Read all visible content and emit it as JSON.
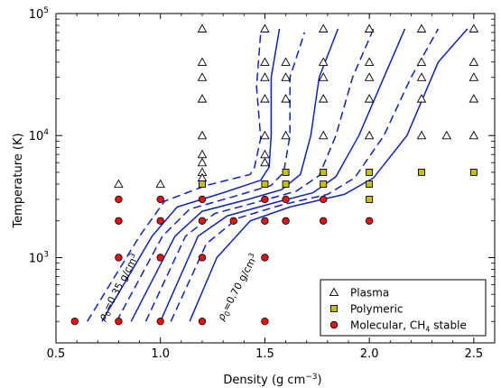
{
  "chart_data": {
    "type": "scatter",
    "xlabel": "Density (g cm",
    "xlabel_sup": "−3",
    "xlabel_end": ")",
    "ylabel": "Temperature (K)",
    "xlim": [
      0.5,
      2.6
    ],
    "ylim": [
      200,
      100000
    ],
    "yscale": "log",
    "x_ticks": [
      {
        "v": 0.5,
        "label": "0.5"
      },
      {
        "v": 1.0,
        "label": "1.0"
      },
      {
        "v": 1.5,
        "label": "1.5"
      },
      {
        "v": 2.0,
        "label": "2.0"
      },
      {
        "v": 2.5,
        "label": "2.5"
      }
    ],
    "y_ticks": [
      {
        "v": 1000,
        "base": "10",
        "exp": "3"
      },
      {
        "v": 10000,
        "base": "10",
        "exp": "4"
      },
      {
        "v": 100000,
        "base": "10",
        "exp": "5"
      }
    ],
    "legend_position": "lower-right",
    "legend": [
      {
        "label": "Plasma",
        "marker": "triangle"
      },
      {
        "label": "Polymeric",
        "marker": "square"
      },
      {
        "label": "Molecular, CH",
        "sub": "4",
        "label_end": " stable",
        "marker": "circle"
      }
    ],
    "annotations": [
      {
        "text": "ρ",
        "sub": "0",
        "text_end": "=0.35 g/cm",
        "sup": "3",
        "x": 0.73,
        "y": 300,
        "angle": -62
      },
      {
        "text": "ρ",
        "sub": "0",
        "text_end": "=0.70 g/cm",
        "sup": "3",
        "x": 1.3,
        "y": 300,
        "angle": -62
      }
    ],
    "colors": {
      "isentrope": "#0d1fd6",
      "plasma": "#ffffff",
      "polymeric": "#c8c000",
      "molecular": "#e81010"
    },
    "points": {
      "plasma": [
        [
          0.8,
          4000
        ],
        [
          1.0,
          4000
        ],
        [
          1.2,
          75000
        ],
        [
          1.2,
          40000
        ],
        [
          1.2,
          30000
        ],
        [
          1.2,
          20000
        ],
        [
          1.2,
          10000
        ],
        [
          1.2,
          7000
        ],
        [
          1.2,
          6000
        ],
        [
          1.2,
          5000
        ],
        [
          1.2,
          4500
        ],
        [
          1.5,
          75000
        ],
        [
          1.5,
          40000
        ],
        [
          1.5,
          30000
        ],
        [
          1.5,
          20000
        ],
        [
          1.5,
          10000
        ],
        [
          1.5,
          7000
        ],
        [
          1.5,
          6000
        ],
        [
          1.6,
          40000
        ],
        [
          1.6,
          30000
        ],
        [
          1.6,
          20000
        ],
        [
          1.6,
          10000
        ],
        [
          1.78,
          75000
        ],
        [
          1.78,
          40000
        ],
        [
          1.78,
          30000
        ],
        [
          1.78,
          20000
        ],
        [
          1.78,
          10000
        ],
        [
          2.0,
          75000
        ],
        [
          2.0,
          40000
        ],
        [
          2.0,
          30000
        ],
        [
          2.0,
          20000
        ],
        [
          2.0,
          10000
        ],
        [
          2.25,
          75000
        ],
        [
          2.25,
          40000
        ],
        [
          2.25,
          30000
        ],
        [
          2.25,
          20000
        ],
        [
          2.25,
          10000
        ],
        [
          2.37,
          10000
        ],
        [
          2.5,
          75000
        ],
        [
          2.5,
          40000
        ],
        [
          2.5,
          30000
        ],
        [
          2.5,
          20000
        ],
        [
          2.5,
          10000
        ]
      ],
      "polymeric": [
        [
          1.2,
          4000
        ],
        [
          1.5,
          4000
        ],
        [
          1.6,
          4000
        ],
        [
          1.78,
          4000
        ],
        [
          2.0,
          4000
        ],
        [
          2.0,
          3000
        ],
        [
          1.6,
          5000
        ],
        [
          1.78,
          5000
        ],
        [
          2.0,
          5000
        ],
        [
          2.25,
          5000
        ],
        [
          2.5,
          5000
        ]
      ],
      "molecular": [
        [
          0.8,
          3000
        ],
        [
          0.8,
          2000
        ],
        [
          0.8,
          1000
        ],
        [
          0.8,
          300
        ],
        [
          1.0,
          3000
        ],
        [
          1.0,
          2000
        ],
        [
          1.0,
          1000
        ],
        [
          1.0,
          300
        ],
        [
          1.2,
          3000
        ],
        [
          1.2,
          2000
        ],
        [
          1.2,
          1000
        ],
        [
          1.2,
          300
        ],
        [
          1.35,
          2000
        ],
        [
          1.5,
          3000
        ],
        [
          1.5,
          2000
        ],
        [
          1.5,
          1000
        ],
        [
          1.5,
          300
        ],
        [
          1.6,
          3000
        ],
        [
          1.6,
          2000
        ],
        [
          1.78,
          3000
        ],
        [
          1.78,
          2000
        ],
        [
          2.0,
          2000
        ],
        [
          0.59,
          300
        ]
      ]
    },
    "isentropes": [
      {
        "dash": true,
        "points": [
          [
            0.65,
            300
          ],
          [
            0.9,
            1500
          ],
          [
            1.02,
            2900
          ],
          [
            1.22,
            3900
          ],
          [
            1.43,
            4800
          ],
          [
            1.45,
            5500
          ],
          [
            1.48,
            9500
          ],
          [
            1.46,
            25000
          ],
          [
            1.48,
            70000
          ]
        ]
      },
      {
        "dash": false,
        "points": [
          [
            0.72,
            300
          ],
          [
            0.96,
            1500
          ],
          [
            1.08,
            2600
          ],
          [
            1.3,
            3400
          ],
          [
            1.48,
            4300
          ],
          [
            1.52,
            5500
          ],
          [
            1.53,
            10000
          ],
          [
            1.53,
            30000
          ],
          [
            1.57,
            75000
          ]
        ]
      },
      {
        "dash": true,
        "points": [
          [
            0.79,
            300
          ],
          [
            1.01,
            1500
          ],
          [
            1.14,
            2500
          ],
          [
            1.36,
            3200
          ],
          [
            1.53,
            3900
          ],
          [
            1.59,
            5000
          ],
          [
            1.62,
            10000
          ],
          [
            1.62,
            30000
          ],
          [
            1.69,
            70000
          ]
        ]
      },
      {
        "dash": false,
        "points": [
          [
            0.86,
            300
          ],
          [
            1.07,
            1500
          ],
          [
            1.2,
            2400
          ],
          [
            1.42,
            3000
          ],
          [
            1.58,
            3600
          ],
          [
            1.67,
            4800
          ],
          [
            1.72,
            10000
          ],
          [
            1.76,
            30000
          ],
          [
            1.85,
            75000
          ]
        ]
      },
      {
        "dash": true,
        "points": [
          [
            0.93,
            300
          ],
          [
            1.12,
            1500
          ],
          [
            1.26,
            2300
          ],
          [
            1.48,
            2900
          ],
          [
            1.65,
            3500
          ],
          [
            1.76,
            4700
          ],
          [
            1.84,
            10000
          ],
          [
            1.92,
            30000
          ],
          [
            2.02,
            75000
          ]
        ]
      },
      {
        "dash": false,
        "points": [
          [
            1.0,
            300
          ],
          [
            1.18,
            1500
          ],
          [
            1.32,
            2200
          ],
          [
            1.54,
            2800
          ],
          [
            1.73,
            3400
          ],
          [
            1.84,
            4600
          ],
          [
            1.95,
            10000
          ],
          [
            2.07,
            30000
          ],
          [
            2.17,
            75000
          ]
        ]
      },
      {
        "dash": true,
        "points": [
          [
            1.05,
            300
          ],
          [
            1.22,
            1300
          ],
          [
            1.37,
            2100
          ],
          [
            1.58,
            2700
          ],
          [
            1.8,
            3300
          ],
          [
            1.93,
            4500
          ],
          [
            2.07,
            10000
          ],
          [
            2.2,
            30000
          ],
          [
            2.33,
            75000
          ]
        ]
      },
      {
        "dash": false,
        "points": [
          [
            1.14,
            300
          ],
          [
            1.27,
            1000
          ],
          [
            1.43,
            2000
          ],
          [
            1.62,
            2600
          ],
          [
            1.88,
            3300
          ],
          [
            2.02,
            4500
          ],
          [
            2.18,
            10000
          ],
          [
            2.33,
            40000
          ],
          [
            2.47,
            75000
          ]
        ]
      }
    ]
  }
}
